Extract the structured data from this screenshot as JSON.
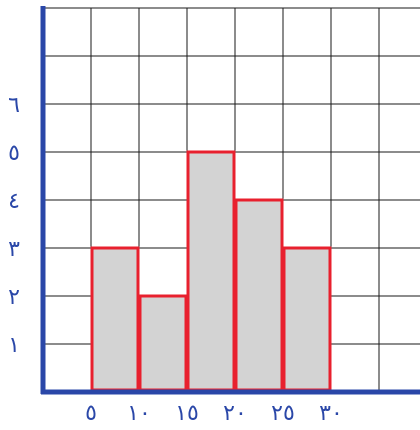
{
  "chart_data": {
    "type": "bar",
    "x_tick_labels": [
      "٥",
      "١٠",
      "١٥",
      "٢٠",
      "٢٥",
      "٣٠"
    ],
    "y_tick_labels": [
      "١",
      "٢",
      "٣",
      "٤",
      "٥",
      "٦"
    ],
    "bins": [
      {
        "from": 5,
        "to": 10,
        "value": 3
      },
      {
        "from": 10,
        "to": 15,
        "value": 2
      },
      {
        "from": 15,
        "to": 20,
        "value": 5
      },
      {
        "from": 20,
        "to": 25,
        "value": 4
      },
      {
        "from": 25,
        "to": 30,
        "value": 3
      }
    ],
    "x_tick_values": [
      5,
      10,
      15,
      20,
      25,
      30
    ],
    "y_tick_values": [
      1,
      2,
      3,
      4,
      5,
      6
    ],
    "xlim": [
      0,
      40
    ],
    "ylim": [
      0,
      8
    ],
    "grid": true,
    "colors": {
      "bar_fill": "#d3d3d3",
      "bar_stroke": "#e8202e",
      "axis": "#2a47a8",
      "grid": "#1a1a1a",
      "tick_text": "#2a47a8"
    }
  }
}
